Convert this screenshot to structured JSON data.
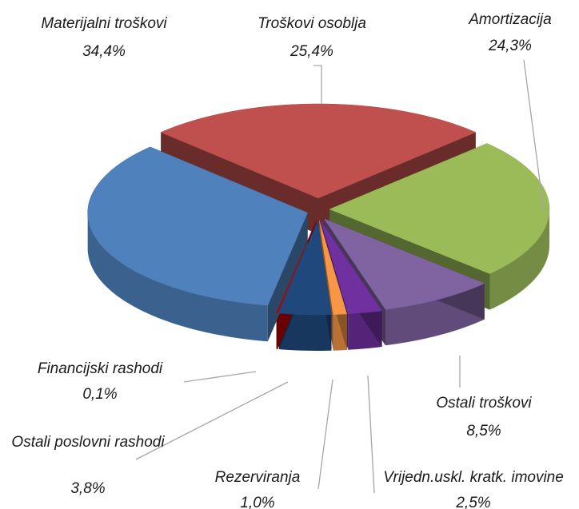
{
  "chart_data": {
    "type": "pie3d",
    "categories": [
      "Troškovi osoblja",
      "Amortizacija",
      "Ostali troškovi",
      "Vrijedn.uskl. kratk. imovine",
      "Rezerviranja",
      "Ostali poslovni rashodi",
      "Financijski rashodi",
      "Materijalni troškovi"
    ],
    "values": [
      25.4,
      24.3,
      8.5,
      2.5,
      1.0,
      3.8,
      0.1,
      34.4
    ],
    "value_labels": [
      "25,4%",
      "24,3%",
      "8,5%",
      "2,5%",
      "1,0%",
      "3,8%",
      "0,1%",
      "34,4%"
    ],
    "colors": [
      "#c0504d",
      "#9bbb59",
      "#8064a2",
      "#7030a0",
      "#f79646",
      "#1f497d",
      "#c00000",
      "#4f81bd"
    ]
  }
}
